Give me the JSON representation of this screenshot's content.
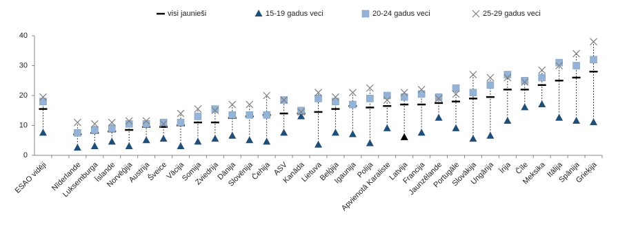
{
  "chart_data": {
    "type": "dot-range",
    "categories": [
      "ESAO vidēji",
      null,
      "Nīderlande",
      "Luksemburga",
      "Īslande",
      "Norvēģija",
      "Austrija",
      "Šveice",
      "Vācija",
      "Somija",
      "Zviedrija",
      "Dānija",
      "Slovēnija",
      "Čehija",
      "ASV",
      "Kanāda",
      "Lietuva",
      "Beļģija",
      "Igaunija",
      "Polija",
      "Apvienotā Karaliste",
      "Latvija",
      "Francija",
      "Jaunzēlande",
      "Portugāle",
      "Slovākija",
      "Ungārija",
      "Īrija",
      "Čīle",
      "Meksika",
      "Itālija",
      "Spānija",
      "Grieķija"
    ],
    "series": [
      {
        "name": "visi jaunieši",
        "marker": "dash",
        "color": "#000000",
        "values": [
          15.5,
          null,
          7,
          7.5,
          8,
          8.5,
          9.5,
          9.5,
          10,
          11,
          11,
          12.5,
          13,
          13.5,
          14,
          14,
          14.5,
          15.5,
          16.5,
          16,
          16.5,
          17,
          17,
          17.5,
          18,
          19,
          19.5,
          22,
          22,
          23.5,
          25,
          26,
          28
        ]
      },
      {
        "name": "15-19 gadus veci",
        "marker": "triangle",
        "color": "#1f4e79",
        "values": [
          7.5,
          null,
          2.5,
          3,
          4.5,
          3,
          5,
          5.5,
          3,
          4.5,
          5.5,
          6.5,
          5,
          4.5,
          7.5,
          13,
          3.5,
          7.5,
          7,
          4,
          9,
          6,
          7.5,
          12.5,
          9,
          5.5,
          6.5,
          11.5,
          16,
          17,
          12.5,
          11.5,
          11
        ]
      },
      {
        "name": "20-24 gadus veci",
        "marker": "square",
        "color": "#95b3d7",
        "values": [
          18,
          null,
          7.5,
          8.5,
          9,
          10.5,
          10.5,
          11,
          11,
          13,
          15.5,
          13.5,
          13.5,
          13.5,
          18.5,
          15,
          19,
          18,
          17,
          19,
          20,
          19.5,
          20.5,
          19.5,
          22.5,
          21,
          23.5,
          27,
          25,
          26,
          31,
          30,
          32
        ]
      },
      {
        "name": "25-29 gadus veci",
        "marker": "cross",
        "color": "#7f7f7f",
        "values": [
          19.5,
          null,
          11,
          10.5,
          11,
          11.5,
          11.5,
          10.5,
          14,
          15.5,
          15,
          17,
          17,
          20,
          18.5,
          14.5,
          21,
          19.5,
          21,
          22.5,
          18.5,
          21,
          22,
          19,
          20.5,
          27,
          26,
          26,
          24.5,
          28.5,
          30,
          34,
          38
        ]
      }
    ],
    "highlight": {
      "category": "Latvija",
      "color": "#000000"
    },
    "ylim": [
      0,
      40
    ],
    "yticks": [
      0,
      10,
      20,
      30,
      40
    ],
    "grid": false,
    "legend": "top"
  }
}
